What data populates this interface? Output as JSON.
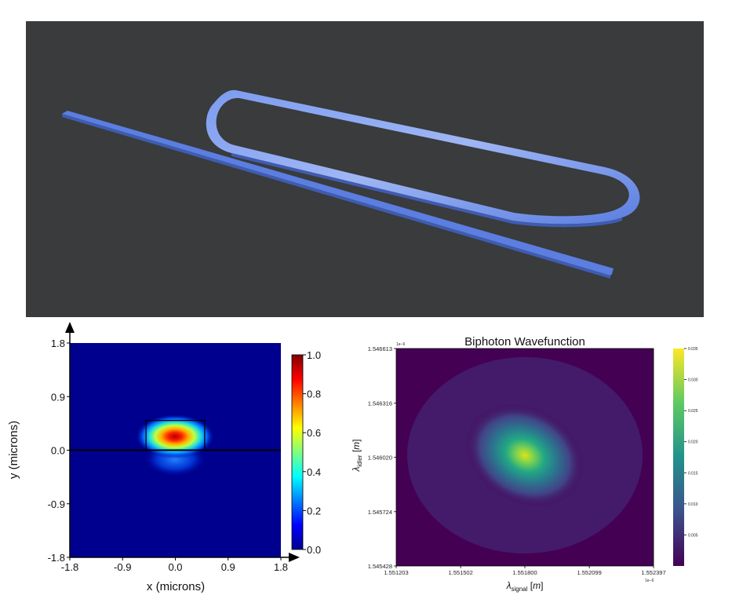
{
  "render": {
    "waveguide_color": "#5b7ee0"
  },
  "chart_data": [
    {
      "type": "heatmap",
      "title": "",
      "xlabel": "x (microns)",
      "ylabel": "y (microns)",
      "xlim": [
        -1.8,
        1.8
      ],
      "ylim": [
        -1.8,
        1.8
      ],
      "x_ticks": [
        "-1.8",
        "-0.9",
        "0.0",
        "0.9",
        "1.8"
      ],
      "y_ticks": [
        "-1.8",
        "-0.9",
        "0.0",
        "0.9",
        "1.8"
      ],
      "colorbar": {
        "min": 0.0,
        "max": 1.0,
        "ticks": [
          "0.0",
          "0.2",
          "0.4",
          "0.6",
          "0.8",
          "1.0"
        ],
        "colormap": "jet"
      },
      "mode_peak": {
        "x": 0.0,
        "y": 0.25,
        "value": 1.0
      },
      "waveguide_core": {
        "x": [
          -0.5,
          0.5
        ],
        "y": [
          0.0,
          0.5
        ]
      },
      "substrate_line_y": 0.0
    },
    {
      "type": "heatmap",
      "title": "Biphoton Wavefunction",
      "xlabel": "λsignal [m]",
      "ylabel": "λidler [m]",
      "xlim": [
        1.551203,
        1.552397
      ],
      "ylim": [
        1.545428,
        1.546613
      ],
      "x_ticks": [
        "1.551203",
        "1.551502",
        "1.551800",
        "1.552099",
        "1.552397"
      ],
      "y_ticks": [
        "1.545428",
        "1.545724",
        "1.546020",
        "1.546316",
        "1.546613"
      ],
      "x_exponent": "1e−6",
      "y_exponent": "1e−6",
      "colorbar": {
        "min": 0.0,
        "max": 0.035,
        "ticks": [
          "0.005",
          "0.010",
          "0.015",
          "0.020",
          "0.025",
          "0.030",
          "0.035"
        ],
        "colormap": "viridis"
      },
      "peak": {
        "x": 1.5518,
        "y": 1.54602,
        "value": 0.034
      }
    }
  ]
}
